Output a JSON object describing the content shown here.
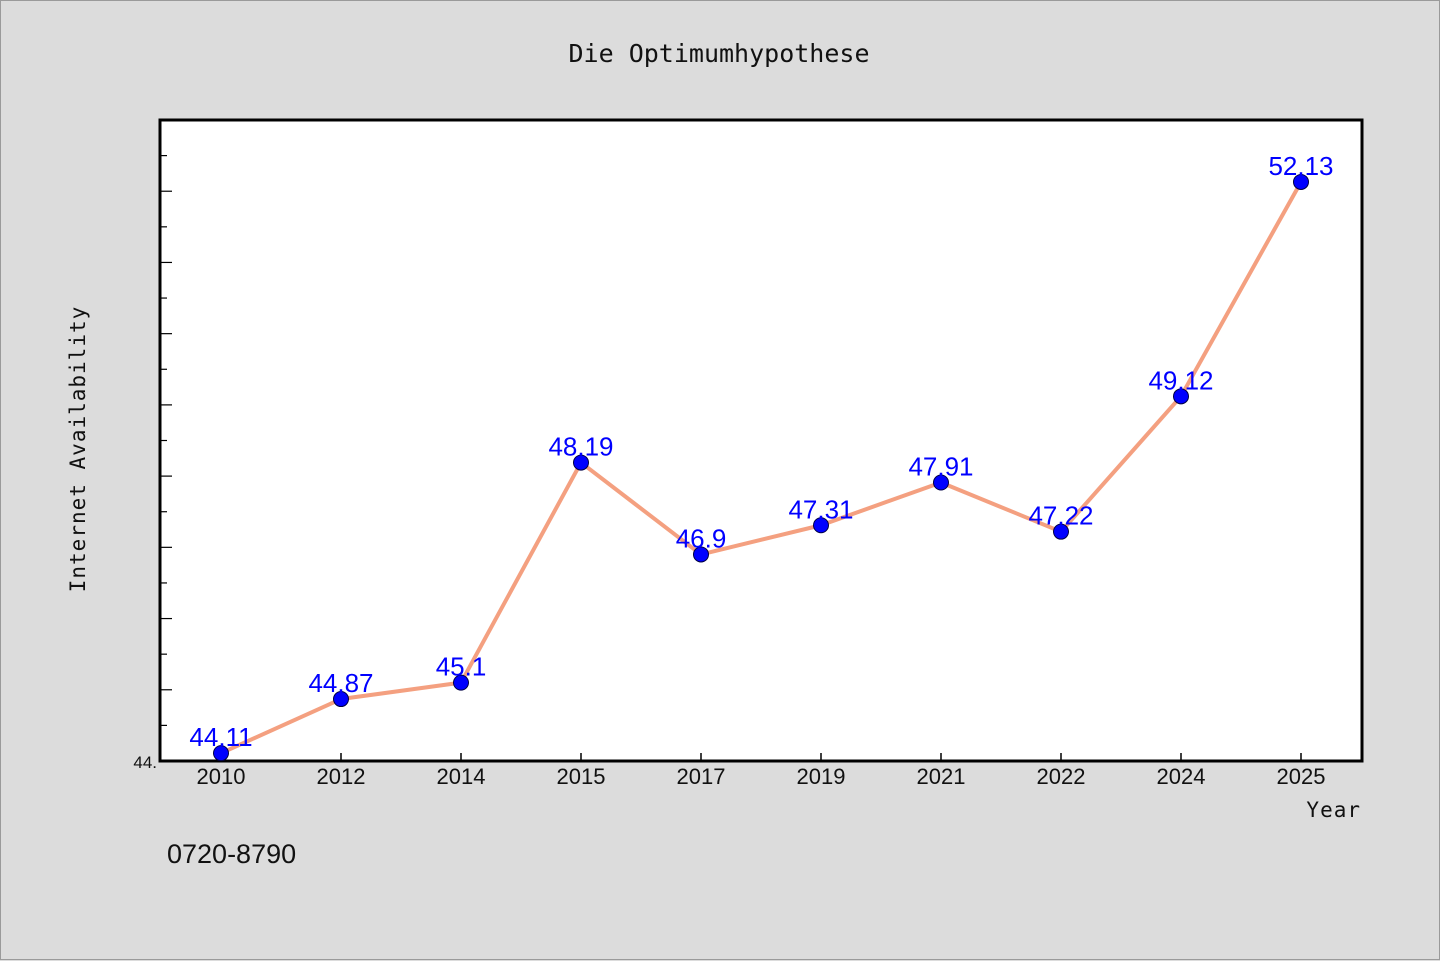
{
  "chart_data": {
    "type": "line",
    "title": "Die Optimumhypothese",
    "xlabel": "Year",
    "ylabel": "Internet Availability",
    "categories": [
      "2010",
      "2012",
      "2014",
      "2015",
      "2017",
      "2019",
      "2021",
      "2022",
      "2024",
      "2025"
    ],
    "series": [
      {
        "values": [
          44.11,
          44.87,
          45.1,
          48.19,
          46.9,
          47.31,
          47.91,
          47.22,
          49.12,
          52.13
        ],
        "labels": [
          "44.11",
          "44.87",
          "45.1",
          "48.19",
          "46.9",
          "47.31",
          "47.91",
          "47.22",
          "49.12",
          "52.13"
        ],
        "line_color": "#f4a080",
        "marker_color": "#0000ff"
      }
    ],
    "ylim": [
      44.0,
      53.0
    ],
    "yticks_shown": [
      "44."
    ],
    "grid": false,
    "legend": "none"
  },
  "footer_text": "0720-8790",
  "colors": {
    "background": "#dcdcdc",
    "plot_background": "#ffffff",
    "line": "#f4a080",
    "marker": "#0000ff",
    "data_label": "#0000ff"
  }
}
